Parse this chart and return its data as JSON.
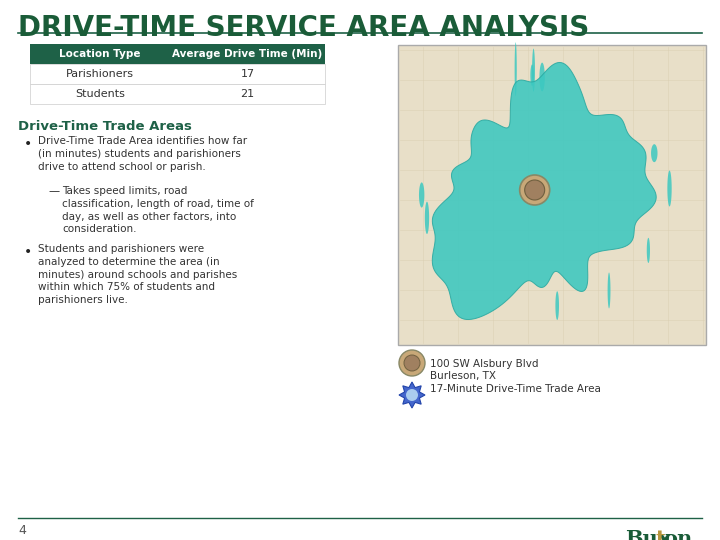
{
  "title": "DRIVE-TIME SERVICE AREA ANALYSIS",
  "title_color": "#1a5c38",
  "title_fontsize": 20,
  "bg_color": "#ffffff",
  "table_header": [
    "Location Type",
    "Average Drive Time (Min)"
  ],
  "table_header_bg": "#1e6147",
  "table_header_color": "#ffffff",
  "table_rows": [
    [
      "Parishioners",
      "17"
    ],
    [
      "Students",
      "21"
    ]
  ],
  "table_row_text_color": "#333333",
  "section_title": "Drive-Time Trade Areas",
  "section_title_color": "#1e6147",
  "bullet1": "Drive-Time Trade Area identifies how far\n(in minutes) students and parishioners\ndrive to attend school or parish.",
  "sub_bullet": "Takes speed limits, road\nclassification, length of road, time of\nday, as well as other factors, into\nconsideration.",
  "bullet2": "Students and parishioners were\nanalyzed to determine the area (in\nminutes) around schools and parishes\nwithin which 75% of students and\nparishioners live.",
  "legend_line1": "100 SW Alsbury Blvd",
  "legend_line2": "Burleson, TX",
  "legend_line3": "17-Minute Drive-Time Trade Area",
  "footer_text": "4",
  "footer_color": "#555555",
  "buxton_green": "#1a5c38",
  "buxton_gold": "#b8963e",
  "divider_color": "#1e6147",
  "map_bg": "#e8dfc8",
  "teal_color": "#3cc8c0",
  "teal_edge": "#2aa8a0"
}
